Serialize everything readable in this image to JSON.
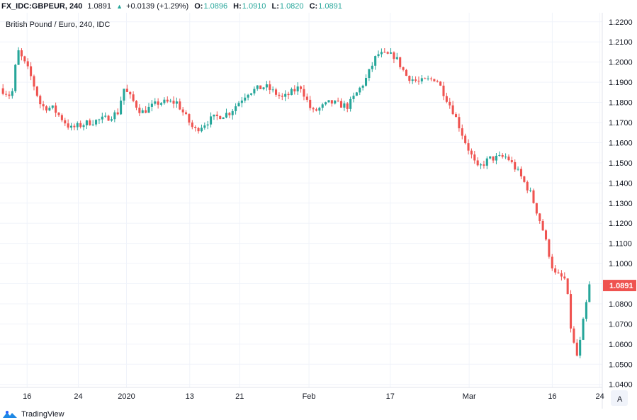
{
  "header": {
    "symbol": "FX_IDC:GBPEUR, 240",
    "last": "1.0891",
    "change": "+0.0139 (+1.29%)",
    "open_label": "O:",
    "open": "1.0896",
    "high_label": "H:",
    "high": "1.0910",
    "low_label": "L:",
    "low": "1.0820",
    "close_label": "C:",
    "close": "1.0891"
  },
  "chart_data": {
    "type": "candlestick",
    "title": "British Pound / Euro, 240, IDC",
    "y_ticks": [
      "1.2200",
      "1.2100",
      "1.2000",
      "1.1900",
      "1.1800",
      "1.1700",
      "1.1600",
      "1.1500",
      "1.1400",
      "1.1300",
      "1.1200",
      "1.1100",
      "1.1000",
      "1.0900",
      "1.0800",
      "1.0700",
      "1.0600",
      "1.0500",
      "1.0400"
    ],
    "ylim": [
      1.0385,
      1.2245
    ],
    "x_ticks": [
      "16",
      "24",
      "2020",
      "13",
      "21",
      "Feb",
      "17",
      "Mar",
      "16",
      "24"
    ],
    "current_price_label": "1.0891",
    "grid": true,
    "price_path": [
      {
        "x": 0,
        "y": 1.187
      },
      {
        "x": 0.02,
        "y": 1.183
      },
      {
        "x": 0.03,
        "y": 1.206
      },
      {
        "x": 0.05,
        "y": 1.195
      },
      {
        "x": 0.07,
        "y": 1.178
      },
      {
        "x": 0.09,
        "y": 1.177
      },
      {
        "x": 0.12,
        "y": 1.167
      },
      {
        "x": 0.15,
        "y": 1.17
      },
      {
        "x": 0.18,
        "y": 1.172
      },
      {
        "x": 0.2,
        "y": 1.175
      },
      {
        "x": 0.21,
        "y": 1.187
      },
      {
        "x": 0.24,
        "y": 1.175
      },
      {
        "x": 0.27,
        "y": 1.18
      },
      {
        "x": 0.3,
        "y": 1.18
      },
      {
        "x": 0.33,
        "y": 1.166
      },
      {
        "x": 0.36,
        "y": 1.172
      },
      {
        "x": 0.39,
        "y": 1.175
      },
      {
        "x": 0.42,
        "y": 1.185
      },
      {
        "x": 0.45,
        "y": 1.188
      },
      {
        "x": 0.48,
        "y": 1.182
      },
      {
        "x": 0.51,
        "y": 1.188
      },
      {
        "x": 0.53,
        "y": 1.175
      },
      {
        "x": 0.56,
        "y": 1.18
      },
      {
        "x": 0.59,
        "y": 1.178
      },
      {
        "x": 0.62,
        "y": 1.191
      },
      {
        "x": 0.64,
        "y": 1.204
      },
      {
        "x": 0.67,
        "y": 1.203
      },
      {
        "x": 0.69,
        "y": 1.193
      },
      {
        "x": 0.71,
        "y": 1.19
      },
      {
        "x": 0.74,
        "y": 1.192
      },
      {
        "x": 0.77,
        "y": 1.175
      },
      {
        "x": 0.79,
        "y": 1.16
      },
      {
        "x": 0.81,
        "y": 1.147
      },
      {
        "x": 0.83,
        "y": 1.152
      },
      {
        "x": 0.86,
        "y": 1.153
      },
      {
        "x": 0.88,
        "y": 1.145
      },
      {
        "x": 0.9,
        "y": 1.135
      },
      {
        "x": 0.92,
        "y": 1.118
      },
      {
        "x": 0.94,
        "y": 1.095
      },
      {
        "x": 0.96,
        "y": 1.092
      },
      {
        "x": 0.97,
        "y": 1.064
      },
      {
        "x": 0.98,
        "y": 1.053
      },
      {
        "x": 0.99,
        "y": 1.072
      },
      {
        "x": 1.0,
        "y": 1.089
      }
    ],
    "candle_count": 190,
    "up_color": "#26a69a",
    "down_color": "#ef5350"
  },
  "footer": {
    "brand": "TradingView",
    "auto_label": "A"
  }
}
